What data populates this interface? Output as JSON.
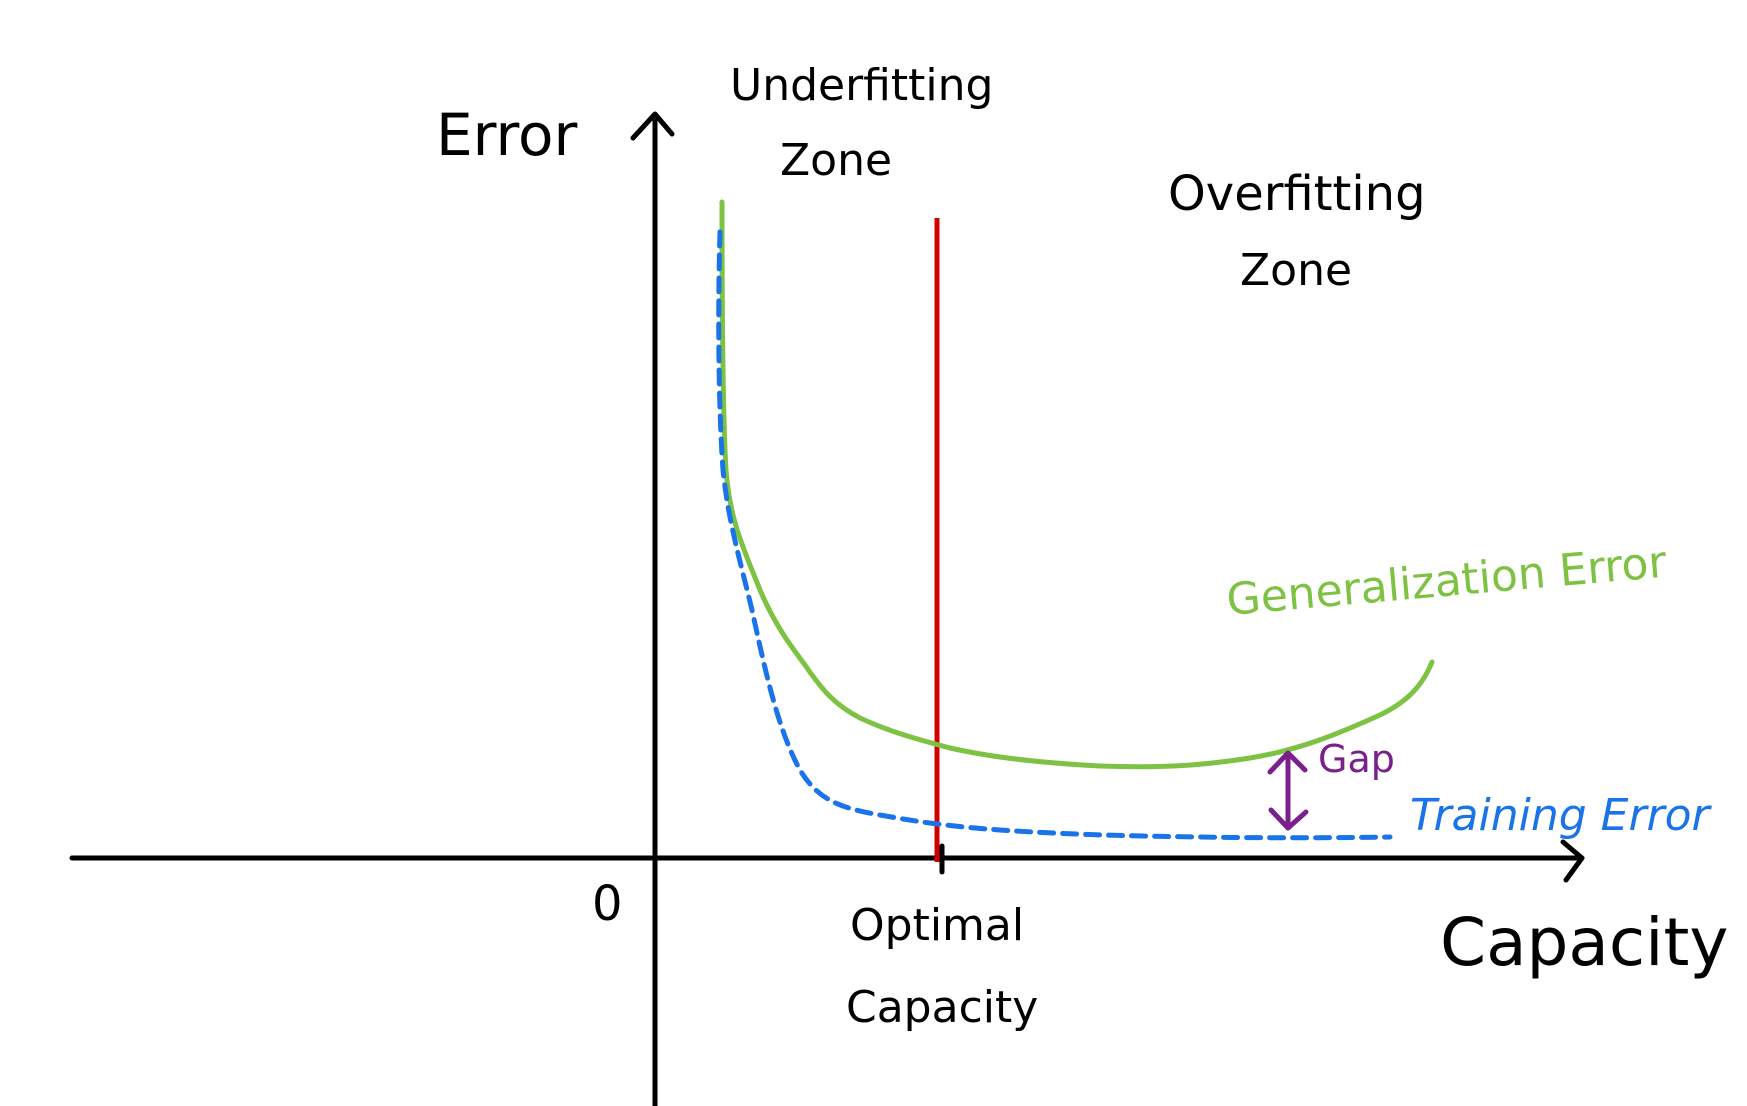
{
  "diagram": {
    "axis_labels": {
      "y": "Error",
      "x": "Capacity",
      "origin": "0"
    },
    "zones": {
      "underfitting_line1": "Underfitting",
      "underfitting_line2": "Zone",
      "overfitting_line1": "Overfitting",
      "overfitting_line2": "Zone"
    },
    "optimal": {
      "line1": "Optimal",
      "line2": "Capacity"
    },
    "curves": {
      "generalization": "Generalization Error",
      "training": "Training Error"
    },
    "gap": "Gap",
    "colors": {
      "axes": "#000000",
      "generalization": "#7dc242",
      "training": "#1a73e8",
      "optimal_line": "#d00000",
      "gap": "#7a1f8c",
      "text": "#000000"
    }
  }
}
